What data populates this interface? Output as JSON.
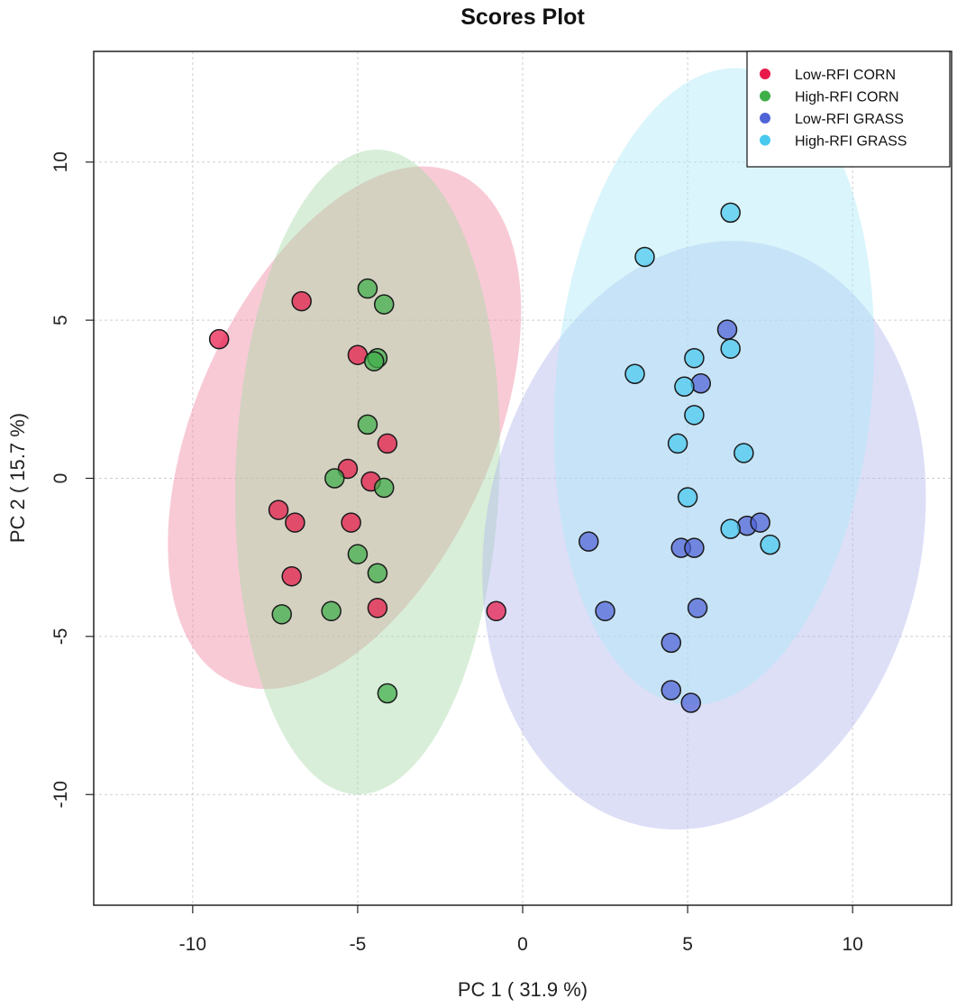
{
  "chart_data": {
    "type": "scatter",
    "title": "Scores Plot",
    "xlabel": "PC 1 ( 31.9 %)",
    "ylabel": "PC 2 ( 15.7 %)",
    "xlim": [
      -13,
      13
    ],
    "ylim": [
      -13.5,
      13.5
    ],
    "x_ticks": [
      -10,
      -5,
      0,
      5,
      10
    ],
    "y_ticks": [
      -10,
      -5,
      0,
      5,
      10
    ],
    "x_tick_labels": [
      "-10",
      "-5",
      "0",
      "5",
      "10"
    ],
    "y_tick_labels": [
      "-10",
      "-5",
      "0",
      "5",
      "10"
    ],
    "grid": true,
    "legend_position": "top-right",
    "series": [
      {
        "name": "Low-RFI CORN",
        "color": "#e8194a",
        "ellipse_color": "#f08aa3",
        "ellipse": {
          "cx": -5.4,
          "cy": 1.6,
          "rx": 4.5,
          "ry": 8.8,
          "angle": 24
        },
        "points": [
          [
            -9.2,
            4.4
          ],
          [
            -6.7,
            5.6
          ],
          [
            -5.0,
            3.9
          ],
          [
            -5.3,
            0.3
          ],
          [
            -4.6,
            -0.1
          ],
          [
            -4.1,
            1.1
          ],
          [
            -7.4,
            -1.0
          ],
          [
            -6.9,
            -1.4
          ],
          [
            -5.2,
            -1.4
          ],
          [
            -7.0,
            -3.1
          ],
          [
            -4.4,
            -4.1
          ],
          [
            -0.8,
            -4.2
          ]
        ]
      },
      {
        "name": "High-RFI CORN",
        "color": "#3fae49",
        "ellipse_color": "#a9d9a9",
        "ellipse": {
          "cx": -4.7,
          "cy": 0.2,
          "rx": 4.0,
          "ry": 10.2,
          "angle": 2
        },
        "points": [
          [
            -4.7,
            6.0
          ],
          [
            -4.2,
            5.5
          ],
          [
            -4.4,
            3.8
          ],
          [
            -4.5,
            3.7
          ],
          [
            -4.7,
            1.7
          ],
          [
            -5.7,
            0.0
          ],
          [
            -4.2,
            -0.3
          ],
          [
            -5.0,
            -2.4
          ],
          [
            -4.4,
            -3.0
          ],
          [
            -5.8,
            -4.2
          ],
          [
            -7.3,
            -4.3
          ],
          [
            -4.1,
            -6.8
          ]
        ]
      },
      {
        "name": "Low-RFI GRASS",
        "color": "#5064d6",
        "ellipse_color": "#b3b8ee",
        "ellipse": {
          "cx": 5.5,
          "cy": -1.8,
          "rx": 6.6,
          "ry": 9.4,
          "angle": 12
        },
        "points": [
          [
            6.2,
            4.7
          ],
          [
            5.4,
            3.0
          ],
          [
            6.8,
            -1.5
          ],
          [
            7.2,
            -1.4
          ],
          [
            2.0,
            -2.0
          ],
          [
            4.8,
            -2.2
          ],
          [
            5.2,
            -2.2
          ],
          [
            2.5,
            -4.2
          ],
          [
            5.3,
            -4.1
          ],
          [
            4.5,
            -5.2
          ],
          [
            4.5,
            -6.7
          ],
          [
            5.1,
            -7.1
          ]
        ]
      },
      {
        "name": "High-RFI GRASS",
        "color": "#49c9ee",
        "ellipse_color": "#aee8f6",
        "ellipse": {
          "cx": 5.8,
          "cy": 2.9,
          "rx": 4.8,
          "ry": 10.1,
          "angle": 5
        },
        "points": [
          [
            6.3,
            8.4
          ],
          [
            3.7,
            7.0
          ],
          [
            5.2,
            3.8
          ],
          [
            6.3,
            4.1
          ],
          [
            3.4,
            3.3
          ],
          [
            4.9,
            2.9
          ],
          [
            5.2,
            2.0
          ],
          [
            4.7,
            1.1
          ],
          [
            6.7,
            0.8
          ],
          [
            5.0,
            -0.6
          ],
          [
            6.3,
            -1.6
          ],
          [
            7.5,
            -2.1
          ]
        ]
      }
    ]
  }
}
